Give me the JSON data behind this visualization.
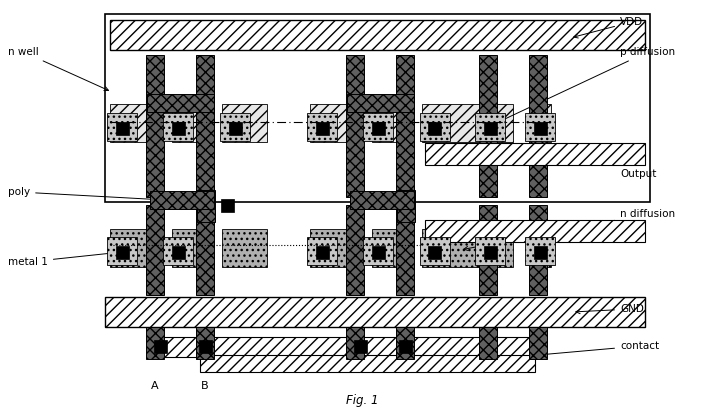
{
  "fig_width": 7.25,
  "fig_height": 4.17,
  "dpi": 100,
  "bg_color": "#ffffff",
  "title": "Fig. 1",
  "labels": {
    "n_well": "n well",
    "vdd": "VDD",
    "p_diffusion": "p diffusion",
    "output": "Output",
    "poly": "poly",
    "n_diffusion": "n diffusion",
    "metal1": "metal 1",
    "gnd": "GND",
    "contact": "contact",
    "A": "A",
    "B": "B"
  },
  "colors": {
    "black": "#000000",
    "white": "#ffffff",
    "light_gray": "#e8e8e8",
    "med_gray": "#b0b0b0",
    "dark_gray": "#606060",
    "metal_gray": "#c8c8c8"
  }
}
